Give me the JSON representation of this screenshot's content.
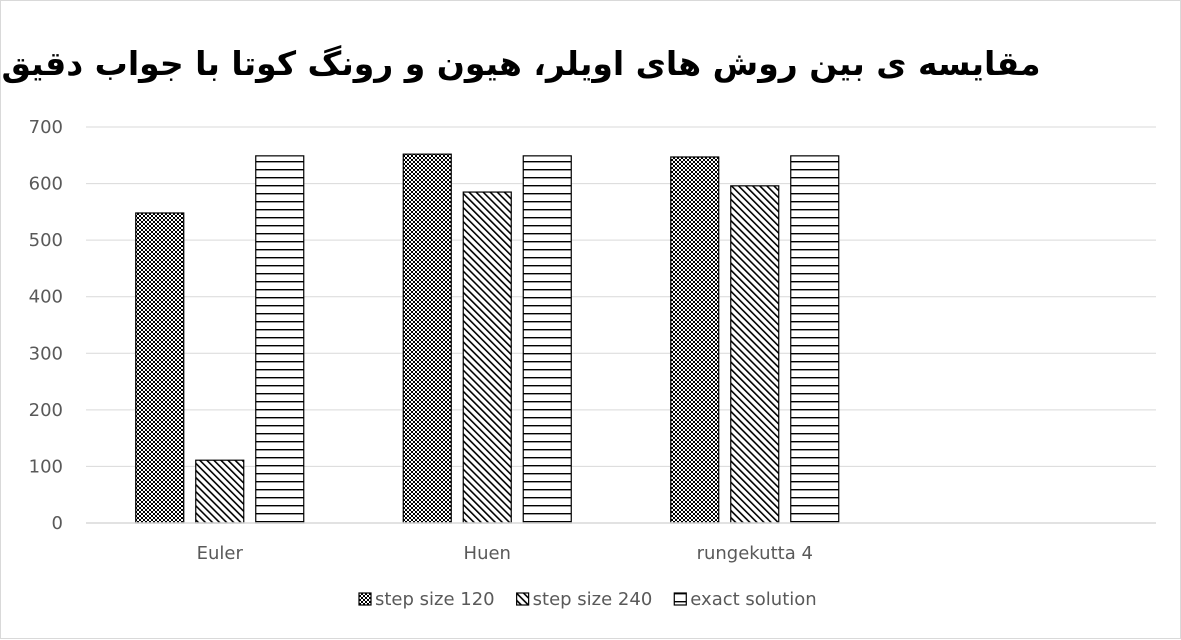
{
  "chart_data": {
    "type": "bar",
    "title": "مقایسه ی بین روش های اویلر، هیون و رونگ کوتا با جواب دقیق",
    "xlabel": "",
    "ylabel": "",
    "categories": [
      "Euler",
      "Huen",
      "rungekutta 4"
    ],
    "series": [
      {
        "name": "step size 120",
        "values": [
          548,
          652,
          647
        ],
        "pattern": "checker"
      },
      {
        "name": "step size 240",
        "values": [
          111,
          585,
          596
        ],
        "pattern": "diagonal"
      },
      {
        "name": "exact solution",
        "values": [
          649,
          649,
          649
        ],
        "pattern": "horizontal"
      }
    ],
    "ylim": [
      0,
      700
    ],
    "yticks": [
      0,
      100,
      200,
      300,
      400,
      500,
      600,
      700
    ],
    "grid": true,
    "legend_position": "bottom",
    "colors": {
      "gridline": "#d9d9d9",
      "bar_stroke": "#000000",
      "text": "#595959"
    }
  }
}
